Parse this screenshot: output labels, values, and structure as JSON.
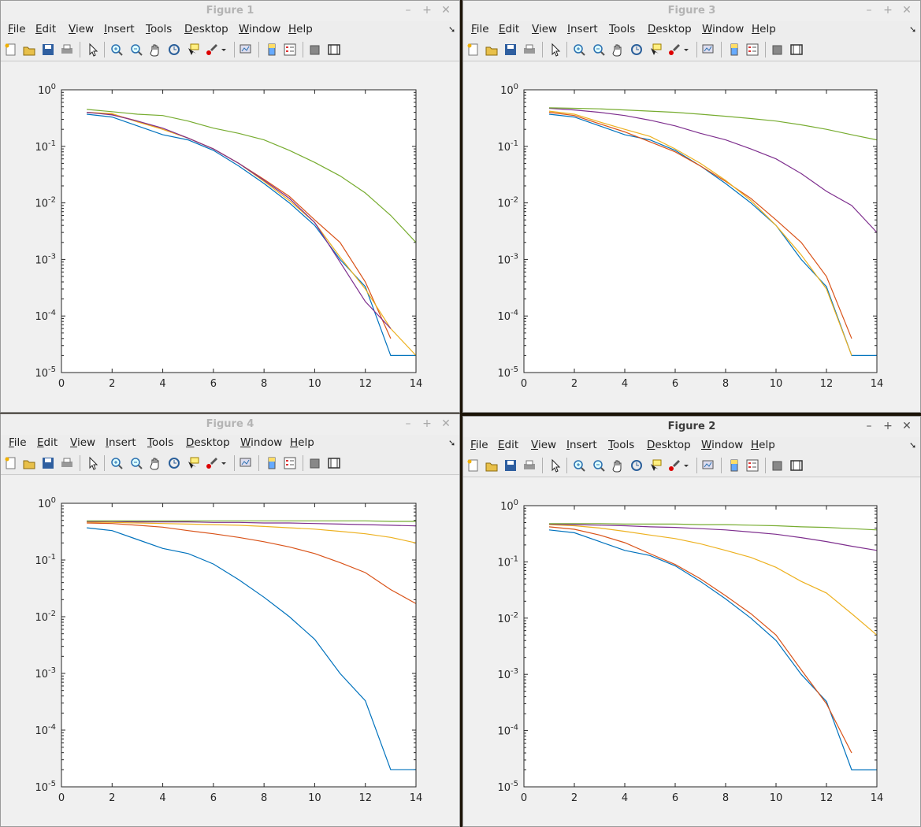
{
  "colors": {
    "blue": "#0072BD",
    "red": "#D95319",
    "yellow": "#EDB120",
    "purple": "#7E2F8E",
    "green": "#77AC30"
  },
  "menus": [
    "File",
    "Edit",
    "View",
    "Insert",
    "Tools",
    "Desktop",
    "Window",
    "Help"
  ],
  "toolbar_icons": [
    "new-figure-icon",
    "open-file-icon",
    "save-icon",
    "print-icon",
    "pointer-icon",
    "zoom-in-icon",
    "zoom-out-icon",
    "pan-icon",
    "rotate-3d-icon",
    "data-cursor-icon",
    "brush-icon",
    "brush-dropdown-icon",
    "link-plot-icon",
    "colorbar-icon",
    "legend-icon",
    "hide-plot-tools-icon",
    "show-plot-tools-icon"
  ],
  "windows": [
    {
      "title": "Figure 1",
      "active": false,
      "chart_data": {
        "type": "line",
        "yscale": "log",
        "xlim": [
          0,
          14
        ],
        "ylim": [
          1e-05,
          1
        ],
        "xticks": [
          "0",
          "2",
          "4",
          "6",
          "8",
          "10",
          "12",
          "14"
        ],
        "yticks": [
          "10",
          "10",
          "10",
          "10",
          "10",
          "10"
        ],
        "yticks_exp": [
          "0",
          "-1",
          "-2",
          "-3",
          "-4",
          "-5"
        ],
        "series": [
          {
            "color": "blue",
            "x": [
              1,
              2,
              3,
              4,
              5,
              6,
              7,
              8,
              9,
              10,
              11,
              12,
              13,
              14
            ],
            "y": [
              0.37,
              0.33,
              0.23,
              0.16,
              0.13,
              0.085,
              0.045,
              0.022,
              0.01,
              0.004,
              0.001,
              0.00033,
              2e-05,
              2e-05
            ]
          },
          {
            "color": "red",
            "x": [
              1,
              2,
              3,
              4,
              5,
              6,
              7,
              8,
              9,
              10,
              11,
              12,
              13
            ],
            "y": [
              0.4,
              0.37,
              0.28,
              0.2,
              0.14,
              0.09,
              0.05,
              0.026,
              0.013,
              0.005,
              0.002,
              0.0004,
              4e-05
            ]
          },
          {
            "color": "yellow",
            "x": [
              1,
              2,
              3,
              4,
              5,
              6,
              7,
              8,
              9,
              10,
              11,
              12,
              13,
              14
            ],
            "y": [
              0.4,
              0.38,
              0.27,
              0.2,
              0.14,
              0.09,
              0.05,
              0.024,
              0.011,
              0.0045,
              0.0011,
              0.0003,
              6e-05,
              2e-05
            ]
          },
          {
            "color": "purple",
            "x": [
              1,
              2,
              3,
              4,
              5,
              6,
              7,
              8,
              9,
              10,
              11,
              12,
              13
            ],
            "y": [
              0.4,
              0.36,
              0.28,
              0.21,
              0.14,
              0.09,
              0.05,
              0.025,
              0.012,
              0.0045,
              0.0009,
              0.00018,
              6e-05
            ]
          },
          {
            "color": "green",
            "x": [
              1,
              2,
              3,
              4,
              5,
              6,
              7,
              8,
              9,
              10,
              11,
              12,
              13,
              14
            ],
            "y": [
              0.45,
              0.41,
              0.37,
              0.35,
              0.28,
              0.21,
              0.17,
              0.13,
              0.085,
              0.052,
              0.03,
              0.015,
              0.006,
              0.002
            ]
          }
        ]
      }
    },
    {
      "title": "Figure 3",
      "active": false,
      "chart_data": {
        "type": "line",
        "yscale": "log",
        "xlim": [
          0,
          14
        ],
        "ylim": [
          1e-05,
          1
        ],
        "xticks": [
          "0",
          "2",
          "4",
          "6",
          "8",
          "10",
          "12",
          "14"
        ],
        "yticks": [
          "10",
          "10",
          "10",
          "10",
          "10",
          "10"
        ],
        "yticks_exp": [
          "0",
          "-1",
          "-2",
          "-3",
          "-4",
          "-5"
        ],
        "series": [
          {
            "color": "blue",
            "x": [
              1,
              2,
              3,
              4,
              5,
              6,
              7,
              8,
              9,
              10,
              11,
              12,
              13,
              14
            ],
            "y": [
              0.37,
              0.33,
              0.23,
              0.16,
              0.13,
              0.085,
              0.045,
              0.022,
              0.01,
              0.004,
              0.001,
              0.00033,
              2e-05,
              2e-05
            ]
          },
          {
            "color": "red",
            "x": [
              1,
              2,
              3,
              4,
              5,
              6,
              7,
              8,
              9,
              10,
              11,
              12,
              13
            ],
            "y": [
              0.4,
              0.35,
              0.25,
              0.18,
              0.12,
              0.08,
              0.045,
              0.024,
              0.012,
              0.005,
              0.002,
              0.0005,
              4e-05
            ]
          },
          {
            "color": "yellow",
            "x": [
              1,
              2,
              3,
              4,
              5,
              6,
              7,
              8,
              9,
              10,
              11,
              12,
              13
            ],
            "y": [
              0.42,
              0.37,
              0.27,
              0.2,
              0.15,
              0.09,
              0.05,
              0.025,
              0.011,
              0.004,
              0.0012,
              0.0003,
              2e-05
            ]
          },
          {
            "color": "purple",
            "x": [
              1,
              2,
              3,
              4,
              5,
              6,
              7,
              8,
              9,
              10,
              11,
              12,
              13,
              14
            ],
            "y": [
              0.47,
              0.44,
              0.4,
              0.35,
              0.29,
              0.23,
              0.17,
              0.13,
              0.09,
              0.06,
              0.033,
              0.016,
              0.009,
              0.003
            ]
          },
          {
            "color": "green",
            "x": [
              1,
              2,
              3,
              4,
              5,
              6,
              7,
              8,
              9,
              10,
              11,
              12,
              13,
              14
            ],
            "y": [
              0.48,
              0.47,
              0.46,
              0.44,
              0.42,
              0.4,
              0.37,
              0.34,
              0.31,
              0.28,
              0.24,
              0.2,
              0.16,
              0.13
            ]
          }
        ]
      }
    },
    {
      "title": "Figure 4",
      "active": false,
      "chart_data": {
        "type": "line",
        "yscale": "log",
        "xlim": [
          0,
          14
        ],
        "ylim": [
          1e-05,
          1
        ],
        "xticks": [
          "0",
          "2",
          "4",
          "6",
          "8",
          "10",
          "12",
          "14"
        ],
        "yticks": [
          "10",
          "10",
          "10",
          "10",
          "10",
          "10"
        ],
        "yticks_exp": [
          "0",
          "-1",
          "-2",
          "-3",
          "-4",
          "-5"
        ],
        "series": [
          {
            "color": "blue",
            "x": [
              1,
              2,
              3,
              4,
              5,
              6,
              7,
              8,
              9,
              10,
              11,
              12,
              13,
              14
            ],
            "y": [
              0.37,
              0.33,
              0.23,
              0.16,
              0.13,
              0.085,
              0.045,
              0.022,
              0.01,
              0.004,
              0.001,
              0.00033,
              2e-05,
              2e-05
            ]
          },
          {
            "color": "red",
            "x": [
              1,
              2,
              3,
              4,
              5,
              6,
              7,
              8,
              9,
              10,
              11,
              12,
              13,
              14
            ],
            "y": [
              0.45,
              0.44,
              0.41,
              0.38,
              0.33,
              0.29,
              0.25,
              0.21,
              0.17,
              0.13,
              0.09,
              0.06,
              0.03,
              0.017
            ]
          },
          {
            "color": "yellow",
            "x": [
              1,
              2,
              3,
              4,
              5,
              6,
              7,
              8,
              9,
              10,
              11,
              12,
              13,
              14
            ],
            "y": [
              0.47,
              0.46,
              0.45,
              0.44,
              0.43,
              0.42,
              0.41,
              0.39,
              0.37,
              0.35,
              0.32,
              0.29,
              0.25,
              0.2
            ]
          },
          {
            "color": "purple",
            "x": [
              1,
              2,
              3,
              4,
              5,
              6,
              7,
              8,
              9,
              10,
              11,
              12,
              13,
              14
            ],
            "y": [
              0.48,
              0.48,
              0.47,
              0.47,
              0.47,
              0.46,
              0.46,
              0.45,
              0.45,
              0.44,
              0.43,
              0.42,
              0.41,
              0.4
            ]
          },
          {
            "color": "green",
            "x": [
              1,
              2,
              3,
              4,
              5,
              6,
              7,
              8,
              9,
              10,
              11,
              12,
              13,
              14
            ],
            "y": [
              0.49,
              0.49,
              0.49,
              0.49,
              0.49,
              0.49,
              0.49,
              0.49,
              0.49,
              0.49,
              0.49,
              0.49,
              0.48,
              0.48
            ]
          }
        ]
      }
    },
    {
      "title": "Figure 2",
      "active": true,
      "chart_data": {
        "type": "line",
        "yscale": "log",
        "xlim": [
          0,
          14
        ],
        "ylim": [
          1e-05,
          1
        ],
        "xticks": [
          "0",
          "2",
          "4",
          "6",
          "8",
          "10",
          "12",
          "14"
        ],
        "yticks": [
          "10",
          "10",
          "10",
          "10",
          "10",
          "10"
        ],
        "yticks_exp": [
          "0",
          "-1",
          "-2",
          "-3",
          "-4",
          "-5"
        ],
        "series": [
          {
            "color": "blue",
            "x": [
              1,
              2,
              3,
              4,
              5,
              6,
              7,
              8,
              9,
              10,
              11,
              12,
              13,
              14
            ],
            "y": [
              0.37,
              0.33,
              0.23,
              0.16,
              0.13,
              0.085,
              0.045,
              0.022,
              0.01,
              0.004,
              0.001,
              0.00033,
              2e-05,
              2e-05
            ]
          },
          {
            "color": "red",
            "x": [
              1,
              2,
              3,
              4,
              5,
              6,
              7,
              8,
              9,
              10,
              11,
              12,
              13
            ],
            "y": [
              0.42,
              0.38,
              0.3,
              0.22,
              0.14,
              0.09,
              0.05,
              0.025,
              0.012,
              0.005,
              0.0012,
              0.0003,
              4e-05
            ]
          },
          {
            "color": "yellow",
            "x": [
              1,
              2,
              3,
              4,
              5,
              6,
              7,
              8,
              9,
              10,
              11,
              12,
              13,
              14
            ],
            "y": [
              0.46,
              0.44,
              0.4,
              0.35,
              0.3,
              0.26,
              0.21,
              0.16,
              0.12,
              0.08,
              0.045,
              0.028,
              0.012,
              0.005
            ]
          },
          {
            "color": "purple",
            "x": [
              1,
              2,
              3,
              4,
              5,
              6,
              7,
              8,
              9,
              10,
              11,
              12,
              13,
              14
            ],
            "y": [
              0.47,
              0.46,
              0.45,
              0.44,
              0.42,
              0.41,
              0.39,
              0.37,
              0.34,
              0.31,
              0.27,
              0.23,
              0.19,
              0.16
            ]
          },
          {
            "color": "green",
            "x": [
              1,
              2,
              3,
              4,
              5,
              6,
              7,
              8,
              9,
              10,
              11,
              12,
              13,
              14
            ],
            "y": [
              0.48,
              0.48,
              0.48,
              0.47,
              0.47,
              0.47,
              0.46,
              0.46,
              0.45,
              0.44,
              0.42,
              0.41,
              0.39,
              0.37
            ]
          }
        ]
      }
    }
  ]
}
